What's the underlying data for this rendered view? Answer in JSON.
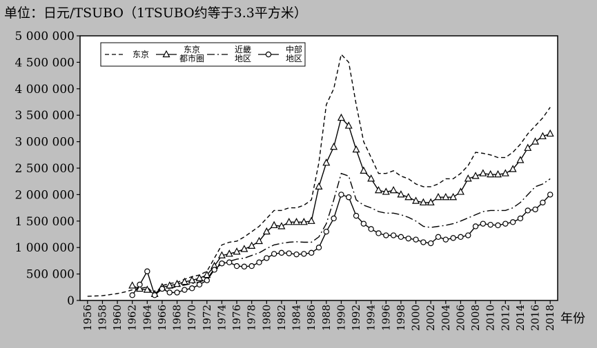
{
  "chart_data": {
    "type": "line",
    "title": "单位：日元/TSUBO（1TSUBO约等于3.3平方米）",
    "xlabel": "年份",
    "ylabel": "",
    "ylim": [
      0,
      5000000
    ],
    "yticks": [
      0,
      500000,
      1000000,
      1500000,
      2000000,
      2500000,
      3000000,
      3500000,
      4000000,
      4500000,
      5000000
    ],
    "ytick_labels": [
      "0",
      "500 000",
      "1 000 000",
      "1 500 000",
      "2 000 000",
      "2 500 000",
      "3 000 000",
      "3 500 000",
      "4 000 000",
      "4 500 000",
      "5 000 000"
    ],
    "xlim": [
      1956,
      2018
    ],
    "xticks": [
      1956,
      1958,
      1960,
      1962,
      1964,
      1966,
      1968,
      1970,
      1972,
      1974,
      1976,
      1978,
      1980,
      1982,
      1984,
      1986,
      1988,
      1990,
      1992,
      1994,
      1996,
      1998,
      2000,
      2002,
      2004,
      2006,
      2008,
      2010,
      2012,
      2014,
      2016,
      2018
    ],
    "xtick_labels": [
      "1956",
      "1958",
      "1960",
      "1962",
      "1964",
      "1966",
      "1968",
      "1970",
      "1972",
      "1974",
      "1976",
      "1978",
      "1980",
      "1982",
      "1984",
      "1986",
      "1988",
      "1990",
      "1992",
      "1994",
      "1996",
      "1998",
      "2000",
      "2002",
      "2004",
      "2006",
      "2008",
      "2010",
      "2012",
      "2014",
      "2016",
      "2018"
    ],
    "grid": false,
    "legend_position": "top-left",
    "series": [
      {
        "name": "东京",
        "style": "dashed",
        "marker": "none",
        "x": [
          1956,
          1957,
          1958,
          1959,
          1960,
          1961,
          1962,
          1963,
          1964,
          1965,
          1966,
          1967,
          1968,
          1969,
          1970,
          1971,
          1972,
          1973,
          1974,
          1975,
          1976,
          1977,
          1978,
          1979,
          1980,
          1981,
          1982,
          1983,
          1984,
          1985,
          1986,
          1987,
          1988,
          1989,
          1990,
          1991,
          1992,
          1993,
          1994,
          1995,
          1996,
          1997,
          1998,
          1999,
          2000,
          2001,
          2002,
          2003,
          2004,
          2005,
          2006,
          2007,
          2008,
          2009,
          2010,
          2011,
          2012,
          2013,
          2014,
          2015,
          2016,
          2017,
          2018
        ],
        "y": [
          80000,
          85000,
          90000,
          110000,
          130000,
          160000,
          200000,
          230000,
          250000,
          120000,
          280000,
          320000,
          340000,
          400000,
          450000,
          480000,
          550000,
          800000,
          1050000,
          1100000,
          1120000,
          1200000,
          1300000,
          1400000,
          1550000,
          1700000,
          1700000,
          1750000,
          1750000,
          1800000,
          1900000,
          2600000,
          3700000,
          4000000,
          4650000,
          4500000,
          3700000,
          3000000,
          2700000,
          2400000,
          2400000,
          2450000,
          2350000,
          2300000,
          2200000,
          2150000,
          2150000,
          2200000,
          2300000,
          2300000,
          2400000,
          2550000,
          2800000,
          2780000,
          2750000,
          2700000,
          2700000,
          2800000,
          2950000,
          3150000,
          3300000,
          3450000,
          3650000
        ]
      },
      {
        "name": "东京都市圈",
        "style": "solid",
        "marker": "triangle",
        "x": [
          1962,
          1963,
          1964,
          1965,
          1966,
          1967,
          1968,
          1969,
          1970,
          1971,
          1972,
          1973,
          1974,
          1975,
          1976,
          1977,
          1978,
          1979,
          1980,
          1981,
          1982,
          1983,
          1984,
          1985,
          1986,
          1987,
          1988,
          1989,
          1990,
          1991,
          1992,
          1993,
          1994,
          1995,
          1996,
          1997,
          1998,
          1999,
          2000,
          2001,
          2002,
          2003,
          2004,
          2005,
          2006,
          2007,
          2008,
          2009,
          2010,
          2011,
          2012,
          2013,
          2014,
          2015,
          2016,
          2017,
          2018
        ],
        "y": [
          280000,
          220000,
          200000,
          120000,
          250000,
          280000,
          310000,
          350000,
          380000,
          420000,
          480000,
          650000,
          850000,
          880000,
          920000,
          970000,
          1030000,
          1120000,
          1300000,
          1420000,
          1400000,
          1480000,
          1480000,
          1480000,
          1500000,
          2150000,
          2600000,
          2900000,
          3450000,
          3300000,
          2850000,
          2450000,
          2300000,
          2080000,
          2050000,
          2080000,
          2000000,
          1950000,
          1880000,
          1850000,
          1850000,
          1950000,
          1950000,
          1950000,
          2050000,
          2300000,
          2350000,
          2400000,
          2380000,
          2380000,
          2400000,
          2480000,
          2650000,
          2880000,
          3000000,
          3100000,
          3150000
        ]
      },
      {
        "name": "近畿地区",
        "style": "dashdot",
        "marker": "none",
        "x": [
          1965,
          1966,
          1967,
          1968,
          1969,
          1970,
          1971,
          1972,
          1973,
          1974,
          1975,
          1976,
          1977,
          1978,
          1979,
          1980,
          1981,
          1982,
          1983,
          1984,
          1985,
          1986,
          1987,
          1988,
          1989,
          1990,
          1991,
          1992,
          1993,
          1994,
          1995,
          1996,
          1997,
          1998,
          1999,
          2000,
          2001,
          2002,
          2003,
          2004,
          2005,
          2006,
          2007,
          2008,
          2009,
          2010,
          2011,
          2012,
          2013,
          2014,
          2015,
          2016,
          2017,
          2018
        ],
        "y": [
          130000,
          200000,
          230000,
          260000,
          290000,
          320000,
          350000,
          400000,
          600000,
          720000,
          740000,
          780000,
          800000,
          850000,
          900000,
          980000,
          1050000,
          1080000,
          1100000,
          1110000,
          1100000,
          1100000,
          1200000,
          1450000,
          1900000,
          2400000,
          2350000,
          1900000,
          1800000,
          1750000,
          1680000,
          1650000,
          1650000,
          1620000,
          1570000,
          1500000,
          1400000,
          1380000,
          1400000,
          1420000,
          1450000,
          1500000,
          1560000,
          1620000,
          1680000,
          1700000,
          1700000,
          1700000,
          1750000,
          1850000,
          2000000,
          2150000,
          2200000,
          2300000
        ]
      },
      {
        "name": "中部地区",
        "style": "solid",
        "marker": "circle",
        "x": [
          1962,
          1963,
          1964,
          1965,
          1966,
          1967,
          1968,
          1969,
          1970,
          1971,
          1972,
          1973,
          1974,
          1975,
          1976,
          1977,
          1978,
          1979,
          1980,
          1981,
          1982,
          1983,
          1984,
          1985,
          1986,
          1987,
          1988,
          1989,
          1990,
          1991,
          1992,
          1993,
          1994,
          1995,
          1996,
          1997,
          1998,
          1999,
          2000,
          2001,
          2002,
          2003,
          2004,
          2005,
          2006,
          2007,
          2008,
          2009,
          2010,
          2011,
          2012,
          2013,
          2014,
          2015,
          2016,
          2017,
          2018
        ],
        "y": [
          100000,
          300000,
          550000,
          100000,
          220000,
          150000,
          150000,
          200000,
          230000,
          300000,
          380000,
          580000,
          700000,
          720000,
          650000,
          640000,
          650000,
          720000,
          800000,
          880000,
          900000,
          890000,
          870000,
          880000,
          900000,
          1000000,
          1300000,
          1550000,
          2000000,
          1950000,
          1600000,
          1450000,
          1350000,
          1270000,
          1230000,
          1230000,
          1200000,
          1170000,
          1150000,
          1100000,
          1080000,
          1200000,
          1150000,
          1180000,
          1200000,
          1230000,
          1400000,
          1450000,
          1430000,
          1420000,
          1450000,
          1480000,
          1550000,
          1700000,
          1720000,
          1850000,
          2000000
        ]
      }
    ],
    "legend": [
      {
        "lines": [
          "东京"
        ],
        "style": "dashed",
        "marker": "none"
      },
      {
        "lines": [
          "东京",
          "都市圈"
        ],
        "style": "solid",
        "marker": "triangle"
      },
      {
        "lines": [
          "近畿",
          "地区"
        ],
        "style": "dashdot",
        "marker": "none"
      },
      {
        "lines": [
          "中部",
          "地区"
        ],
        "style": "solid",
        "marker": "circle"
      }
    ],
    "colors": {
      "background": "#bfbfbf",
      "plot_area": "#ffffff",
      "line": "#000000"
    }
  }
}
